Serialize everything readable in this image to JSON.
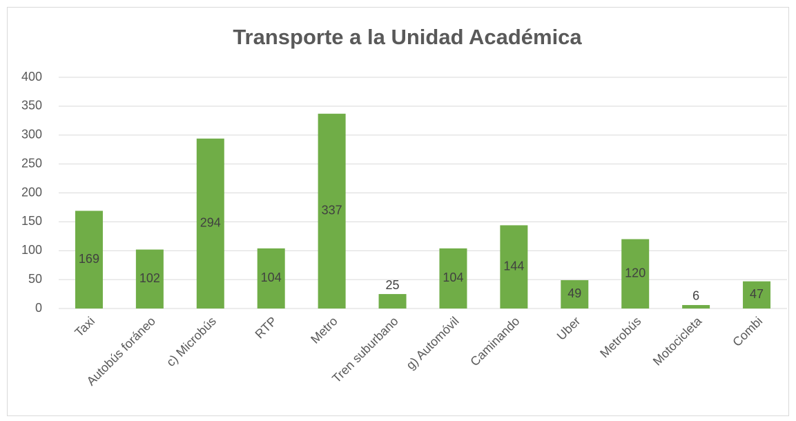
{
  "chart_data": {
    "type": "bar",
    "title": "Transporte a la Unidad Académica",
    "categories": [
      "Taxi",
      "Autobús foráneo",
      "c) Microbús",
      "RTP",
      "Metro",
      "Tren suburbano",
      "g) Automóvil",
      "Caminando",
      "Uber",
      "Metrobús",
      "Motocicleta",
      "Combi"
    ],
    "values": [
      169,
      102,
      294,
      104,
      337,
      25,
      104,
      144,
      49,
      120,
      6,
      47
    ],
    "color": "#70ad47",
    "ylim": [
      0,
      400
    ],
    "yticks": [
      0,
      50,
      100,
      150,
      200,
      250,
      300,
      350,
      400
    ],
    "grid": true
  }
}
